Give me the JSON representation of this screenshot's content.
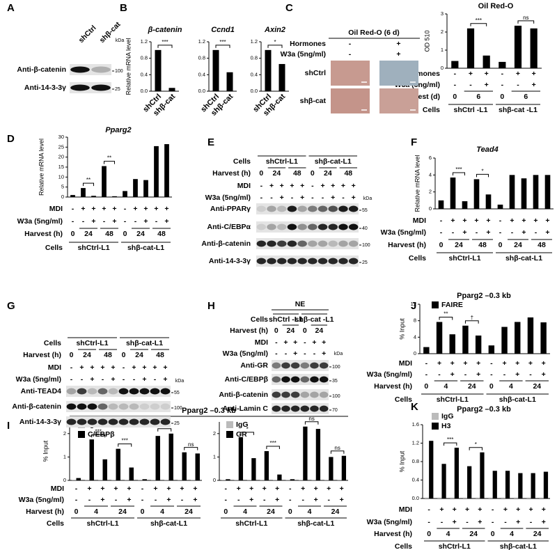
{
  "panel_letters": [
    "A",
    "B",
    "C",
    "D",
    "E",
    "F",
    "G",
    "H",
    "I",
    "J",
    "K"
  ],
  "chart_data": [
    {
      "type": "bar",
      "title": "β-catenin",
      "y_label": "Relative mRNA level",
      "categories": [
        "shCtrl",
        "shβ-cat"
      ],
      "values": [
        1,
        0.08
      ],
      "color": "#000000",
      "ylim": [
        0,
        1.2
      ],
      "yticks": [
        {
          "value": 0,
          "label": "0.0"
        },
        0.4,
        0.8,
        1.2
      ],
      "significance": [
        "***",
        null
      ]
    },
    {
      "type": "bar",
      "title": "Ccnd1",
      "categories": [
        "shCtrl",
        "shβ-cat"
      ],
      "values": [
        1,
        0.46
      ],
      "color": "#000000",
      "ylim": [
        0,
        1.2
      ],
      "yticks": [
        {
          "value": 0,
          "label": "0.0"
        },
        0.4,
        0.8,
        1.2
      ],
      "significance": [
        "***",
        null
      ]
    },
    {
      "type": "bar",
      "title": "Axin2",
      "categories": [
        "shCtrl",
        "shβ-cat"
      ],
      "values": [
        1,
        0.66
      ],
      "color": "#000000",
      "ylim": [
        0,
        1.2
      ],
      "yticks": [
        {
          "value": 0,
          "label": "0.0"
        },
        0.4,
        0.8,
        1.2
      ],
      "significance": [
        "*",
        null
      ]
    },
    {
      "type": "bar",
      "title": "Oil Red-O",
      "y_label": "OD 510",
      "values": [
        0.4,
        2.2,
        0.7,
        0.35,
        2.35,
        2.2
      ],
      "color": "#000000",
      "ylim": [
        0,
        3
      ],
      "yticks": [
        0,
        1,
        2,
        3
      ],
      "significance": [
        null,
        "***",
        null,
        null,
        "ns",
        null
      ],
      "rows": [
        {
          "label": "Hormones",
          "cells": [
            "-",
            "+",
            "+",
            "-",
            "+",
            "+"
          ]
        },
        {
          "label": "W3a (5ng/ml)",
          "cells": [
            "-",
            "-",
            "+",
            "-",
            "-",
            "+"
          ]
        },
        {
          "label": "Harvest (d)",
          "cells": [
            "0",
            "6",
            null,
            "0",
            "6",
            null
          ]
        },
        {
          "label": "Cells",
          "cells": [
            "shCtrl -L1",
            null,
            null,
            "shβ-cat -L1",
            null,
            null
          ]
        }
      ]
    },
    {
      "type": "bar",
      "title": "Pparg2",
      "y_label": "Relative mRNA level",
      "values": [
        1,
        4.5,
        0.6,
        15.5,
        0.4,
        3,
        9,
        8.5,
        25.5,
        26.5
      ],
      "color": "#000000",
      "ylim": [
        0,
        30
      ],
      "yticks": [
        0,
        5,
        10,
        15,
        20,
        25,
        30
      ],
      "significance": [
        null,
        "**",
        null,
        "**",
        null,
        null,
        null,
        null,
        null,
        null
      ],
      "rows": [
        {
          "label": "MDI",
          "cells": [
            "-",
            "+",
            "+",
            "+",
            "+",
            "-",
            "+",
            "+",
            "+",
            "+"
          ]
        },
        {
          "label": "W3a (5ng/ml)",
          "cells": [
            "-",
            "-",
            "+",
            "-",
            "+",
            "-",
            "-",
            "+",
            "-",
            "+"
          ]
        },
        {
          "label": "Harvest (h)",
          "cells": [
            "0",
            "24",
            null,
            "48",
            null,
            "0",
            "24",
            null,
            "48",
            null
          ]
        },
        {
          "label": "Cells",
          "cells": [
            "shCtrl-L1",
            null,
            null,
            null,
            null,
            "shβ-cat-L1",
            null,
            null,
            null,
            null
          ]
        }
      ]
    },
    {
      "type": "bar",
      "title": "Tead4",
      "y_label": "Relative mRNA level",
      "values": [
        1,
        3.7,
        0.9,
        3.5,
        1.7,
        0.5,
        4,
        3.6,
        4,
        4
      ],
      "color": "#000000",
      "ylim": [
        0,
        6
      ],
      "yticks": [
        0,
        2,
        4,
        6
      ],
      "significance": [
        null,
        "***",
        null,
        "*",
        null,
        null,
        null,
        null,
        null,
        null
      ],
      "rows": [
        {
          "label": "MDI",
          "cells": [
            "-",
            "+",
            "+",
            "+",
            "+",
            "-",
            "+",
            "+",
            "+",
            "+"
          ]
        },
        {
          "label": "W3a (5ng/ml)",
          "cells": [
            "-",
            "-",
            "+",
            "-",
            "+",
            "-",
            "-",
            "+",
            "-",
            "+"
          ]
        },
        {
          "label": "Harvest (h)",
          "cells": [
            "0",
            "24",
            null,
            "48",
            null,
            "0",
            "24",
            null,
            "48",
            null
          ]
        },
        {
          "label": "Cells",
          "cells": [
            "shCtrl-L1",
            null,
            null,
            null,
            null,
            "shβ-cat-L1",
            null,
            null,
            null,
            null
          ]
        }
      ]
    },
    {
      "type": "bar",
      "title": "Pparg2 –0.3 kb",
      "y_label": "% Input",
      "series": [
        {
          "name": "FAIRE",
          "color": "#000000",
          "values": [
            1.6,
            7.7,
            4.7,
            6.8,
            4.4,
            2,
            6.5,
            7.7,
            8.8,
            7.6
          ]
        }
      ],
      "ylim": [
        0,
        12
      ],
      "yticks": [
        0,
        4,
        8,
        12
      ],
      "significance": [
        null,
        "**",
        null,
        "†",
        null,
        null,
        null,
        null,
        null,
        null
      ],
      "rows": [
        {
          "label": "MDI",
          "cells": [
            "-",
            "+",
            "+",
            "+",
            "+",
            "-",
            "+",
            "+",
            "+",
            "+"
          ]
        },
        {
          "label": "W3a (5ng/ml)",
          "cells": [
            "-",
            "-",
            "+",
            "-",
            "+",
            "-",
            "-",
            "+",
            "-",
            "+"
          ]
        },
        {
          "label": "Harvest (h)",
          "cells": [
            "0",
            "4",
            null,
            "24",
            null,
            "0",
            "4",
            null,
            "24",
            null
          ]
        },
        {
          "label": "Cells",
          "cells": [
            "shCtrl-L1",
            null,
            null,
            null,
            null,
            "shβ-cat-L1",
            null,
            null,
            null,
            null
          ]
        }
      ]
    },
    {
      "type": "bar",
      "title": "Pparg2 –0.3 kb",
      "y_label": "% Input",
      "series": [
        {
          "name": "IgG",
          "color": "#bbbbbb",
          "values": [
            0.03,
            0.03,
            0.03,
            0.03,
            0.03,
            0.03,
            0.03,
            0.03,
            0.03,
            0.03
          ]
        },
        {
          "name": "C/EBPβ",
          "color": "#000000",
          "values": [
            0.1,
            1.75,
            0.9,
            1.35,
            0.55,
            0.05,
            1.9,
            2.0,
            1.2,
            1.15
          ]
        }
      ],
      "ylim": [
        0,
        2.5
      ],
      "yticks": [
        0,
        1,
        2
      ],
      "significance": [
        null,
        "***",
        null,
        "***",
        null,
        null,
        "ns",
        null,
        "ns",
        null
      ],
      "rows": [
        {
          "label": "MDI",
          "cells": [
            "-",
            "+",
            "+",
            "+",
            "+",
            "-",
            "+",
            "+",
            "+",
            "+"
          ]
        },
        {
          "label": "W3a (5ng/ml)",
          "cells": [
            "-",
            "-",
            "+",
            "-",
            "+",
            "-",
            "-",
            "+",
            "-",
            "+"
          ]
        },
        {
          "label": "Harvest (h)",
          "cells": [
            "0",
            "4",
            null,
            "24",
            null,
            "0",
            "4",
            null,
            "24",
            null
          ]
        },
        {
          "label": "Cells",
          "cells": [
            "shCtrl-L1",
            null,
            null,
            null,
            null,
            "shβ-cat-L1",
            null,
            null,
            null,
            null
          ]
        }
      ]
    },
    {
      "type": "bar",
      "series": [
        {
          "name": "IgG",
          "color": "#bbbbbb",
          "values": [
            0.03,
            0.03,
            0.03,
            0.03,
            0.03,
            0.03,
            0.03,
            0.03,
            0.03,
            0.03
          ]
        },
        {
          "name": "GR",
          "color": "#000000",
          "values": [
            0.05,
            1.85,
            0.95,
            1.25,
            0.25,
            0.05,
            2.3,
            2.2,
            1.0,
            1.05
          ]
        }
      ],
      "ylim": [
        0,
        2.5
      ],
      "yticks": [
        0,
        1,
        2
      ],
      "significance": [
        null,
        "*",
        null,
        "***",
        null,
        null,
        "ns",
        null,
        "ns",
        null
      ],
      "rows": [
        {
          "cells": [
            "-",
            "+",
            "+",
            "+",
            "+",
            "-",
            "+",
            "+",
            "+",
            "+"
          ]
        },
        {
          "cells": [
            "-",
            "-",
            "+",
            "-",
            "+",
            "-",
            "-",
            "+",
            "-",
            "+"
          ]
        },
        {
          "cells": [
            "0",
            "4",
            null,
            "24",
            null,
            "0",
            "4",
            null,
            "24",
            null
          ]
        },
        {
          "cells": [
            "shCtrl-L1",
            null,
            null,
            null,
            null,
            "shβ-cat-L1",
            null,
            null,
            null,
            null
          ]
        }
      ]
    },
    {
      "type": "bar",
      "title": "Pparg2 –0.3 kb",
      "y_label": "% Input",
      "series": [
        {
          "name": "IgG",
          "color": "#bbbbbb",
          "values": [
            0.02,
            0.02,
            0.02,
            0.02,
            0.02,
            0.02,
            0.02,
            0.02,
            0.02,
            0.02
          ]
        },
        {
          "name": "H3",
          "color": "#000000",
          "values": [
            1.25,
            0.75,
            1.1,
            0.7,
            1.0,
            0.6,
            0.6,
            0.55,
            0.55,
            0.58
          ]
        }
      ],
      "ylim": [
        0,
        1.6
      ],
      "yticks": [
        {
          "value": 0,
          "label": "0.0"
        },
        0.4,
        0.8,
        1.2,
        1.6
      ],
      "significance": [
        null,
        "***",
        null,
        "*",
        null,
        null,
        null,
        null,
        null,
        null
      ],
      "rows": [
        {
          "label": "MDI",
          "cells": [
            "-",
            "+",
            "+",
            "+",
            "+",
            "-",
            "+",
            "+",
            "+",
            "+"
          ]
        },
        {
          "label": "W3a (5ng/ml)",
          "cells": [
            "-",
            "-",
            "+",
            "-",
            "+",
            "-",
            "-",
            "+",
            "-",
            "+"
          ]
        },
        {
          "label": "Harvest (h)",
          "cells": [
            "0",
            "4",
            null,
            "24",
            null,
            "0",
            "4",
            null,
            "24",
            null
          ]
        },
        {
          "label": "Cells",
          "cells": [
            "shCtrl-L1",
            null,
            null,
            null,
            null,
            "shβ-cat-L1",
            null,
            null,
            null,
            null
          ]
        }
      ]
    }
  ],
  "blots": [
    {
      "rows": [
        {
          "cells": [
            "shCtrl",
            "shβ-cat"
          ]
        }
      ],
      "antibodies": [
        "Anti-β-catenin",
        "Anti-14-3-3γ"
      ],
      "kda_unit": "kDa",
      "markers": [
        100,
        25
      ]
    },
    {
      "rows": [
        {
          "label": "Cells",
          "cells": [
            "shCtrl-L1",
            null,
            null,
            null,
            null,
            "shβ-cat-L1",
            null,
            null,
            null,
            null
          ]
        },
        {
          "label": "Harvest (h)",
          "cells": [
            "0",
            "24",
            null,
            "48",
            null,
            "0",
            "24",
            null,
            "48",
            null
          ]
        },
        {
          "label": "MDI",
          "cells": [
            "-",
            "+",
            "+",
            "+",
            "+",
            "-",
            "+",
            "+",
            "+",
            "+"
          ]
        },
        {
          "label": "W3a (5ng/ml)",
          "cells": [
            "-",
            "-",
            "+",
            "-",
            "+",
            "-",
            "-",
            "+",
            "-",
            "+"
          ]
        }
      ],
      "antibodies": [
        "Anti-PPARγ",
        "Anti-C/EBPα",
        "Anti-β-catenin",
        "Anti-14-3-3γ"
      ],
      "kda_unit": "kDa",
      "markers": [
        55,
        40,
        100,
        25
      ]
    },
    {
      "rows": [
        {
          "label": "Cells",
          "cells": [
            "shCtrl-L1",
            null,
            null,
            null,
            null,
            "shβ-cat-L1",
            null,
            null,
            null,
            null
          ]
        },
        {
          "label": "Harvest (h)",
          "cells": [
            "0",
            "24",
            null,
            "48",
            null,
            "0",
            "24",
            null,
            "48",
            null
          ]
        },
        {
          "label": "MDI",
          "cells": [
            "-",
            "+",
            "+",
            "+",
            "+",
            "-",
            "+",
            "+",
            "+",
            "+"
          ]
        },
        {
          "label": "W3a (5ng/ml)",
          "cells": [
            "-",
            "-",
            "+",
            "-",
            "+",
            "-",
            "-",
            "+",
            "-",
            "+"
          ]
        }
      ],
      "antibodies": [
        "Anti-TEAD4",
        "Anti-β-catenin",
        "Anti-14-3-3γ"
      ],
      "kda_unit": "kDa",
      "markers": [
        55,
        100,
        25
      ]
    },
    {
      "header": "NE",
      "rows": [
        {
          "label": "Cells",
          "cells": [
            "shCtrl -L1",
            null,
            null,
            "shβ-cat -L1",
            null,
            null
          ]
        },
        {
          "label": "Harvest (h)",
          "cells": [
            "0",
            "24",
            null,
            "0",
            "24",
            null
          ]
        },
        {
          "label": "MDI",
          "cells": [
            "-",
            "+",
            "+",
            "-",
            "+",
            "+"
          ]
        },
        {
          "label": "W3a (5ng/ml)",
          "cells": [
            "-",
            "-",
            "+",
            "-",
            "-",
            "+"
          ]
        }
      ],
      "antibodies": [
        "Anti-GR",
        "Anti-C/EBPβ",
        "Anti-β-catenin",
        "Anti-Lamin C"
      ],
      "kda_unit": "kDa",
      "markers": [
        100,
        35,
        100,
        70
      ]
    }
  ],
  "micrographs": {
    "title": "Oil Red-O (6 d)",
    "rows": [
      {
        "label": "Hormones",
        "cells": [
          "-",
          "+"
        ]
      },
      {
        "label": "W3a (5ng/ml)",
        "cells": [
          "-",
          "+"
        ]
      }
    ],
    "samples": [
      "shCtrl",
      "shβ-cat"
    ]
  }
}
